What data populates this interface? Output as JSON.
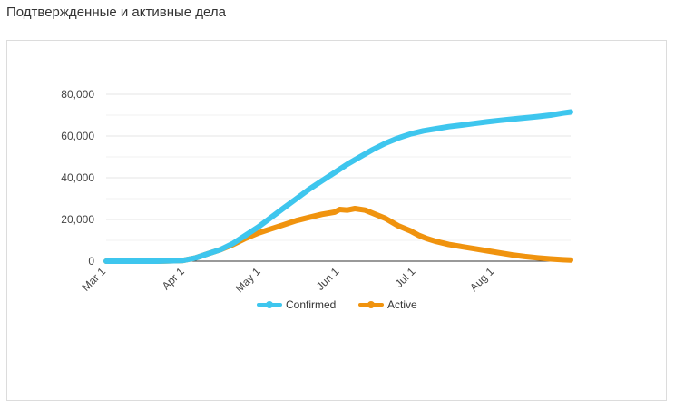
{
  "page": {
    "title": "Подтвержденные и активные дела"
  },
  "colors": {
    "confirmed": "#3ec6ee",
    "active": "#f0930e",
    "grid": "#e6e6e6",
    "axis": "#333333"
  },
  "chart_data": {
    "type": "line",
    "title": "",
    "xlabel": "",
    "ylabel": "",
    "x_ticks": [
      {
        "label": "Mar 1",
        "day": 0
      },
      {
        "label": "Apr 1",
        "day": 31
      },
      {
        "label": "May 1",
        "day": 61
      },
      {
        "label": "Jun 1",
        "day": 92
      },
      {
        "label": "Jul 1",
        "day": 122
      },
      {
        "label": "Aug 1",
        "day": 153
      }
    ],
    "ylim": [
      0,
      80000
    ],
    "y_ticks": [
      0,
      20000,
      40000,
      60000,
      80000
    ],
    "y_tick_labels": [
      "0",
      "20,000",
      "40,000",
      "60,000",
      "80,000"
    ],
    "grid": true,
    "legend_position": "bottom",
    "series": [
      {
        "name": "Confirmed",
        "points": [
          [
            0,
            0
          ],
          [
            20,
            0
          ],
          [
            30,
            300
          ],
          [
            35,
            1500
          ],
          [
            40,
            3500
          ],
          [
            45,
            5500
          ],
          [
            50,
            8500
          ],
          [
            55,
            12500
          ],
          [
            60,
            16500
          ],
          [
            65,
            21000
          ],
          [
            70,
            25500
          ],
          [
            75,
            30000
          ],
          [
            80,
            34500
          ],
          [
            85,
            38500
          ],
          [
            90,
            42500
          ],
          [
            95,
            46500
          ],
          [
            100,
            50000
          ],
          [
            105,
            53500
          ],
          [
            110,
            56500
          ],
          [
            115,
            59000
          ],
          [
            120,
            61000
          ],
          [
            125,
            62500
          ],
          [
            130,
            63500
          ],
          [
            135,
            64500
          ],
          [
            140,
            65200
          ],
          [
            145,
            66000
          ],
          [
            150,
            66800
          ],
          [
            155,
            67500
          ],
          [
            160,
            68100
          ],
          [
            165,
            68700
          ],
          [
            170,
            69300
          ],
          [
            175,
            70000
          ],
          [
            180,
            71000
          ],
          [
            183,
            71500
          ]
        ]
      },
      {
        "name": "Active",
        "points": [
          [
            0,
            0
          ],
          [
            20,
            0
          ],
          [
            30,
            300
          ],
          [
            35,
            1500
          ],
          [
            40,
            3500
          ],
          [
            45,
            5500
          ],
          [
            50,
            8000
          ],
          [
            55,
            11000
          ],
          [
            60,
            13500
          ],
          [
            65,
            15500
          ],
          [
            70,
            17500
          ],
          [
            75,
            19500
          ],
          [
            80,
            21000
          ],
          [
            85,
            22500
          ],
          [
            90,
            23500
          ],
          [
            92,
            24800
          ],
          [
            95,
            24500
          ],
          [
            98,
            25200
          ],
          [
            102,
            24500
          ],
          [
            105,
            23000
          ],
          [
            110,
            20500
          ],
          [
            115,
            17000
          ],
          [
            120,
            14500
          ],
          [
            123,
            12500
          ],
          [
            126,
            11000
          ],
          [
            130,
            9500
          ],
          [
            135,
            8000
          ],
          [
            140,
            7000
          ],
          [
            145,
            6000
          ],
          [
            150,
            5000
          ],
          [
            155,
            4000
          ],
          [
            160,
            3000
          ],
          [
            165,
            2200
          ],
          [
            170,
            1600
          ],
          [
            175,
            1100
          ],
          [
            180,
            700
          ],
          [
            183,
            500
          ]
        ]
      }
    ]
  }
}
